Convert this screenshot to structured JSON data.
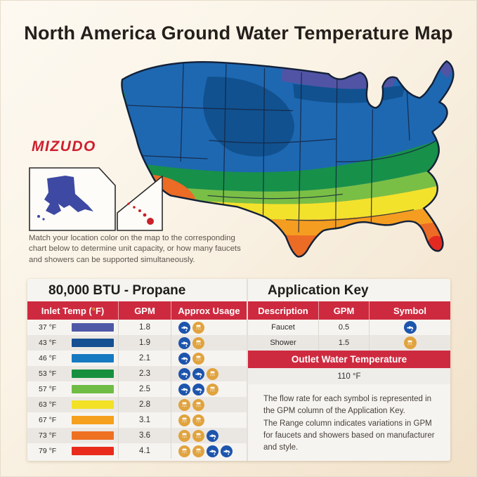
{
  "title": "North America Ground Water Temperature Map",
  "brand": {
    "logo_text": "MIZUDO"
  },
  "intro": {
    "lines": [
      "Match your location color on the map to the corresponding",
      "chart below to determine unit capacity, or how many faucets",
      "and showers can be supported simultaneously."
    ]
  },
  "capacity_table": {
    "title": "80,000 BTU - Propane",
    "columns": [
      "Inlet Temp (°F)",
      "GPM",
      "Approx Usage"
    ],
    "rows": [
      {
        "temp": "37 °F",
        "color": "#4f58a7",
        "gpm": "1.8",
        "icons": [
          "faucet",
          "shower"
        ]
      },
      {
        "temp": "43 °F",
        "color": "#164f92",
        "gpm": "1.9",
        "icons": [
          "faucet",
          "shower"
        ]
      },
      {
        "temp": "46 °F",
        "color": "#1779c0",
        "gpm": "2.1",
        "icons": [
          "faucet",
          "shower"
        ]
      },
      {
        "temp": "53 °F",
        "color": "#16903f",
        "gpm": "2.3",
        "icons": [
          "faucet",
          "faucet",
          "shower"
        ]
      },
      {
        "temp": "57 °F",
        "color": "#6fbd44",
        "gpm": "2.5",
        "icons": [
          "faucet",
          "faucet",
          "shower"
        ]
      },
      {
        "temp": "63 °F",
        "color": "#f2e126",
        "gpm": "2.8",
        "icons": [
          "shower",
          "shower"
        ]
      },
      {
        "temp": "67 °F",
        "color": "#f5a01e",
        "gpm": "3.1",
        "icons": [
          "shower",
          "shower"
        ]
      },
      {
        "temp": "73 °F",
        "color": "#ee7122",
        "gpm": "3.6",
        "icons": [
          "shower",
          "shower",
          "faucet"
        ]
      },
      {
        "temp": "79 °F",
        "color": "#e92b1c",
        "gpm": "4.1",
        "icons": [
          "shower",
          "shower",
          "faucet",
          "faucet"
        ]
      }
    ]
  },
  "application_key": {
    "title": "Application Key",
    "columns": [
      "Description",
      "GPM",
      "Symbol"
    ],
    "rows": [
      {
        "description": "Faucet",
        "gpm": "0.5",
        "symbol": "faucet"
      },
      {
        "description": "Shower",
        "gpm": "1.5",
        "symbol": "shower"
      }
    ],
    "outlet_banner": "Outlet Water Temperature",
    "outlet_value": "110 °F",
    "note_lines": [
      "The flow rate for each symbol is represented in",
      "the GPM column of the Application Key.",
      "The Range column indicates variations in GPM",
      "for faucets and showers based on manufacturer",
      "and style."
    ]
  },
  "colors": {
    "accent_red": "#ce2a3f",
    "faucet_blue": "#1d55ad",
    "shower_orange": "#e1a33e",
    "brand_red": "#ce1f2e",
    "map_bands": {
      "purple": "#5154a5",
      "blue": "#1e68b2",
      "navy": "#11518f",
      "green": "#17904a",
      "light_green": "#7abf45",
      "yellow": "#f3e22b",
      "orange": "#f59d20",
      "deep_orange": "#ec6b25",
      "red": "#e32a20"
    },
    "alaska_fill": "#3e49a3",
    "hawaii_fill": "#c92128"
  }
}
